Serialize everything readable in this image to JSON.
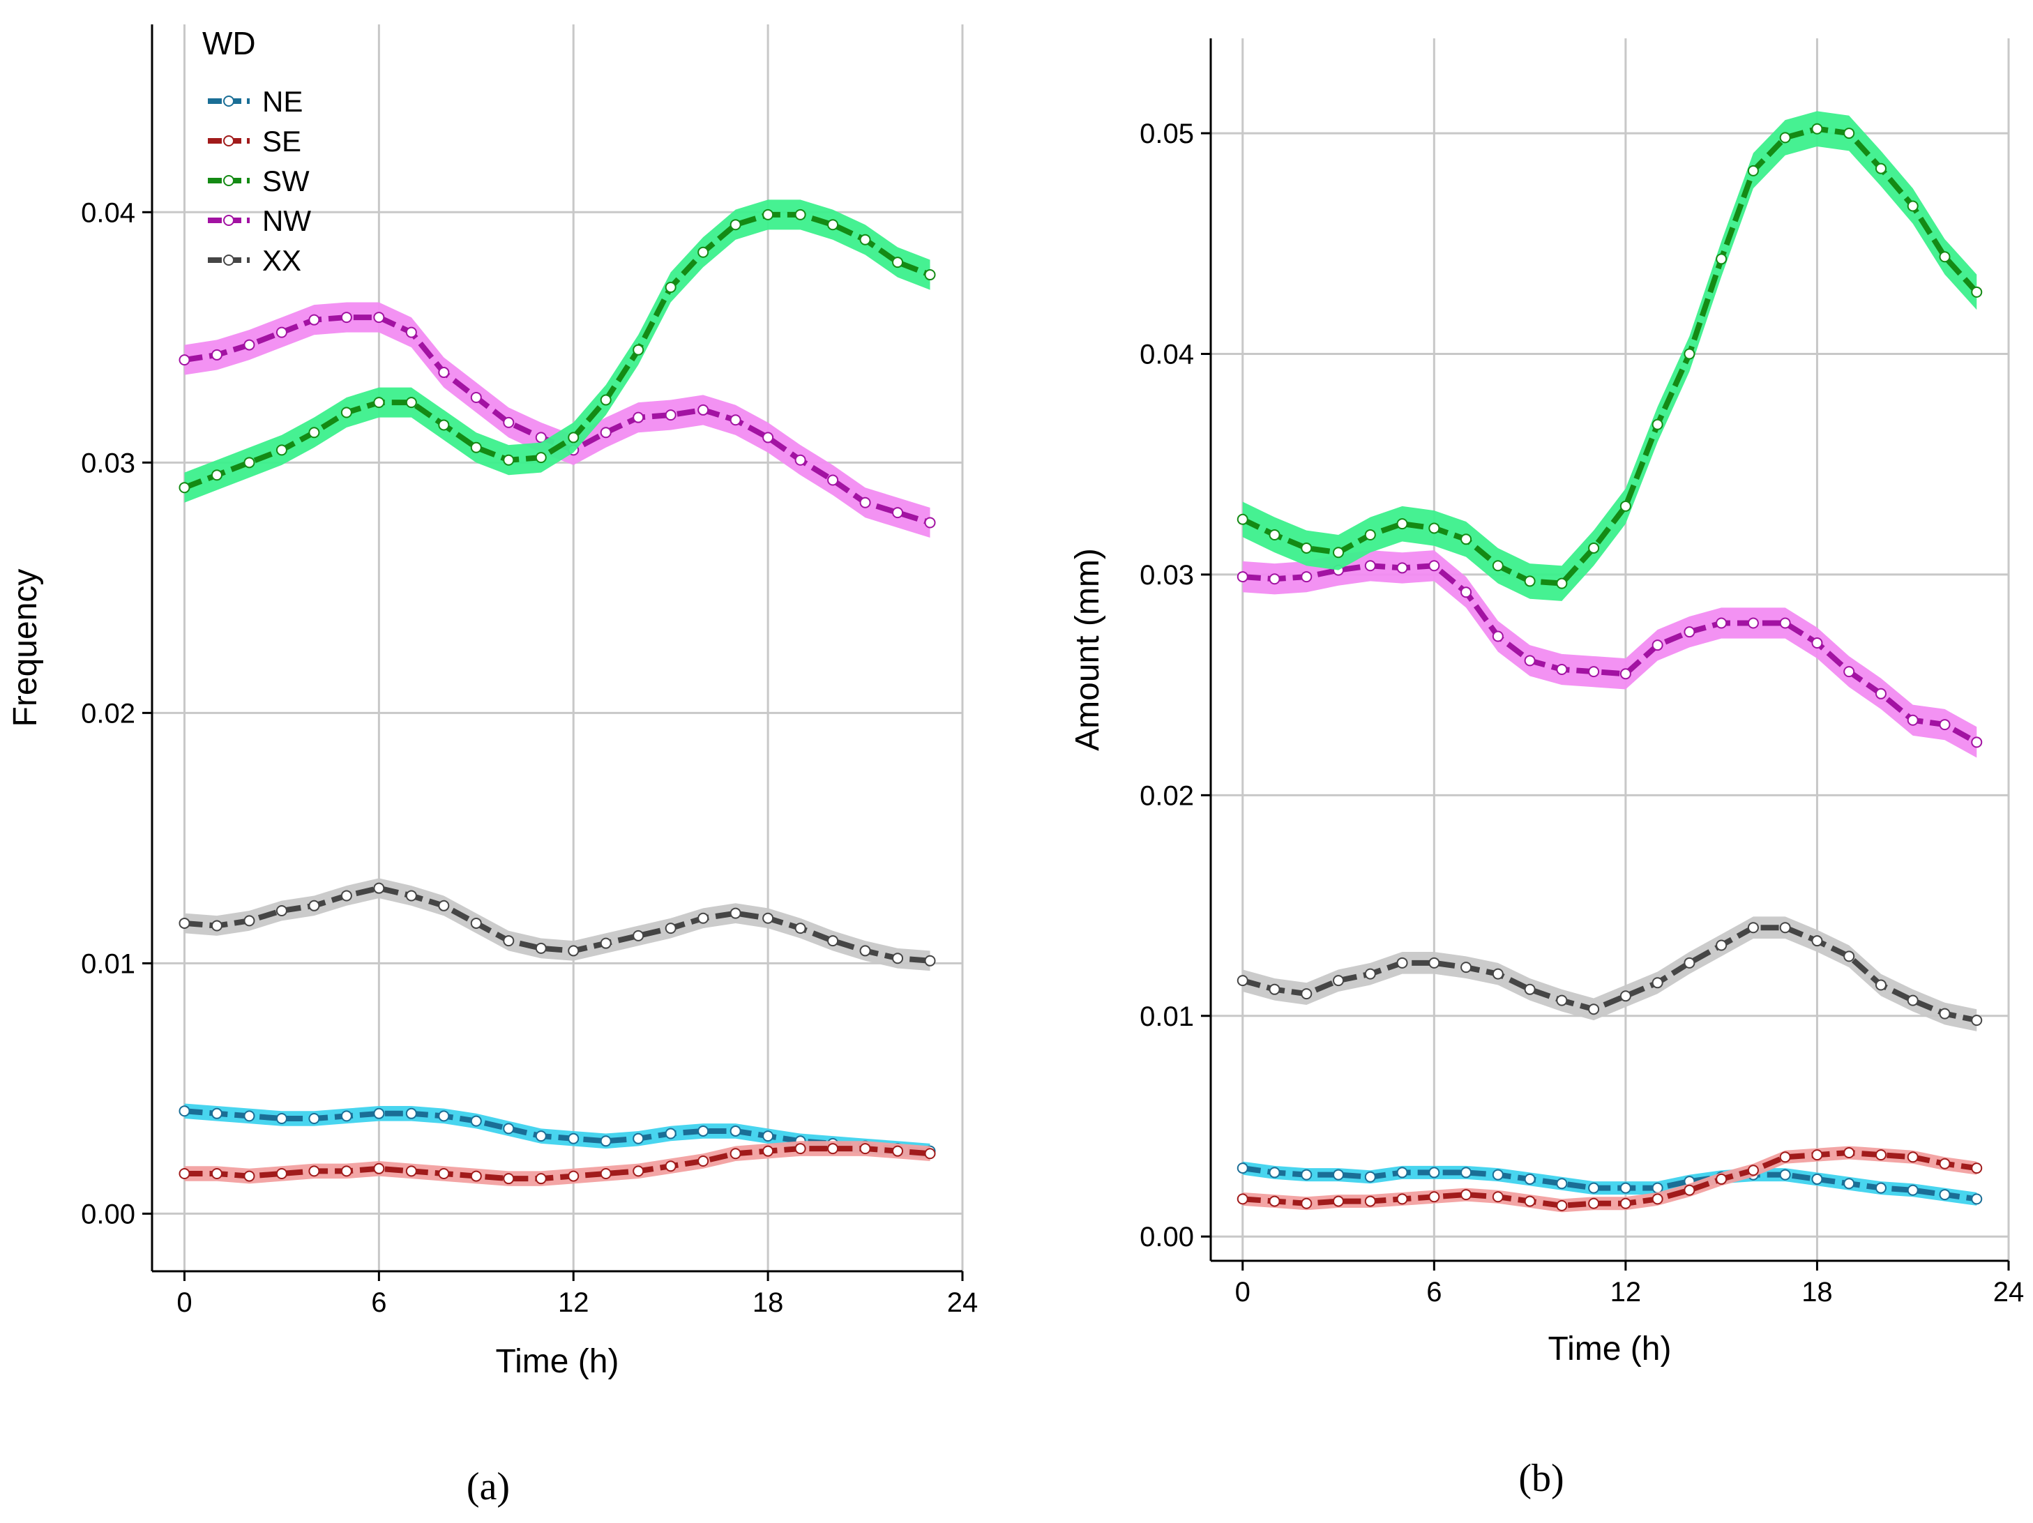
{
  "colors": {
    "NE": {
      "line": "#1a6e96",
      "band": "#3ed3ee"
    },
    "SE": {
      "line": "#a11b1b",
      "band": "#f2a0a0"
    },
    "SW": {
      "line": "#148a14",
      "band": "#3cf08c"
    },
    "NW": {
      "line": "#a212a2",
      "band": "#f28cf2"
    },
    "XX": {
      "line": "#454545",
      "band": "#c8c8c8"
    },
    "grid": "#c8c8c8",
    "axis": "#000000"
  },
  "chart_data": [
    {
      "type": "line",
      "panel_label": "(a)",
      "xlabel": "Time (h)",
      "ylabel": "Frequency",
      "xlim": [
        -1,
        24
      ],
      "ylim": [
        -0.0023,
        0.0475
      ],
      "xticks": [
        0,
        6,
        12,
        18,
        24
      ],
      "xtick_labels": [
        "0",
        "6",
        "12",
        "18",
        "24"
      ],
      "yticks": [
        0.0,
        0.01,
        0.02,
        0.03,
        0.04
      ],
      "ytick_labels": [
        "0.00",
        "0.01",
        "0.02",
        "0.03",
        "0.04"
      ],
      "grid": true,
      "legend": {
        "title": "WD",
        "position": "top-left"
      },
      "x": [
        0,
        1,
        2,
        3,
        4,
        5,
        6,
        7,
        8,
        9,
        10,
        11,
        12,
        13,
        14,
        15,
        16,
        17,
        18,
        19,
        20,
        21,
        22,
        23
      ],
      "series": [
        {
          "name": "NE",
          "values": [
            0.0041,
            0.004,
            0.0039,
            0.0038,
            0.0038,
            0.0039,
            0.004,
            0.004,
            0.0039,
            0.0037,
            0.0034,
            0.0031,
            0.003,
            0.0029,
            0.003,
            0.0032,
            0.0033,
            0.0033,
            0.0031,
            0.0029,
            0.0028,
            0.0027,
            0.0026,
            0.0025
          ]
        },
        {
          "name": "SE",
          "values": [
            0.0016,
            0.0016,
            0.0015,
            0.0016,
            0.0017,
            0.0017,
            0.0018,
            0.0017,
            0.0016,
            0.0015,
            0.0014,
            0.0014,
            0.0015,
            0.0016,
            0.0017,
            0.0019,
            0.0021,
            0.0024,
            0.0025,
            0.0026,
            0.0026,
            0.0026,
            0.0025,
            0.0024
          ]
        },
        {
          "name": "SW",
          "values": [
            0.029,
            0.0295,
            0.03,
            0.0305,
            0.0312,
            0.032,
            0.0324,
            0.0324,
            0.0315,
            0.0306,
            0.0301,
            0.0302,
            0.031,
            0.0325,
            0.0345,
            0.037,
            0.0384,
            0.0395,
            0.0399,
            0.0399,
            0.0395,
            0.0389,
            0.038,
            0.0375
          ]
        },
        {
          "name": "NW",
          "values": [
            0.0341,
            0.0343,
            0.0347,
            0.0352,
            0.0357,
            0.0358,
            0.0358,
            0.0352,
            0.0336,
            0.0326,
            0.0316,
            0.031,
            0.0305,
            0.0312,
            0.0318,
            0.0319,
            0.0321,
            0.0317,
            0.031,
            0.0301,
            0.0293,
            0.0284,
            0.028,
            0.0276
          ]
        },
        {
          "name": "XX",
          "values": [
            0.0116,
            0.0115,
            0.0117,
            0.0121,
            0.0123,
            0.0127,
            0.013,
            0.0127,
            0.0123,
            0.0116,
            0.0109,
            0.0106,
            0.0105,
            0.0108,
            0.0111,
            0.0114,
            0.0118,
            0.012,
            0.0118,
            0.0114,
            0.0109,
            0.0105,
            0.0102,
            0.0101
          ]
        }
      ],
      "band_halfwidth": {
        "NE": 0.0003,
        "SE": 0.0003,
        "SW": 0.0006,
        "NW": 0.0006,
        "XX": 0.0004
      }
    },
    {
      "type": "line",
      "panel_label": "(b)",
      "xlabel": "Time (h)",
      "ylabel": "Amount (mm)",
      "xlim": [
        -1,
        24
      ],
      "ylim": [
        -0.0011,
        0.0543
      ],
      "xticks": [
        0,
        6,
        12,
        18,
        24
      ],
      "xtick_labels": [
        "0",
        "6",
        "12",
        "18",
        "24"
      ],
      "yticks": [
        0.0,
        0.01,
        0.02,
        0.03,
        0.04,
        0.05
      ],
      "ytick_labels": [
        "0.00",
        "0.01",
        "0.02",
        "0.03",
        "0.04",
        "0.05"
      ],
      "grid": true,
      "x": [
        0,
        1,
        2,
        3,
        4,
        5,
        6,
        7,
        8,
        9,
        10,
        11,
        12,
        13,
        14,
        15,
        16,
        17,
        18,
        19,
        20,
        21,
        22,
        23
      ],
      "series": [
        {
          "name": "NE",
          "values": [
            0.0031,
            0.0029,
            0.0028,
            0.0028,
            0.0027,
            0.0029,
            0.0029,
            0.0029,
            0.0028,
            0.0026,
            0.0024,
            0.0022,
            0.0022,
            0.0022,
            0.0025,
            0.0027,
            0.0028,
            0.0028,
            0.0026,
            0.0024,
            0.0022,
            0.0021,
            0.0019,
            0.0017
          ]
        },
        {
          "name": "SE",
          "values": [
            0.0017,
            0.0016,
            0.0015,
            0.0016,
            0.0016,
            0.0017,
            0.0018,
            0.0019,
            0.0018,
            0.0016,
            0.0014,
            0.0015,
            0.0015,
            0.0017,
            0.0021,
            0.0026,
            0.003,
            0.0036,
            0.0037,
            0.0038,
            0.0037,
            0.0036,
            0.0033,
            0.0031
          ]
        },
        {
          "name": "SW",
          "values": [
            0.0325,
            0.0318,
            0.0312,
            0.031,
            0.0318,
            0.0323,
            0.0321,
            0.0316,
            0.0304,
            0.0297,
            0.0296,
            0.0312,
            0.0331,
            0.0368,
            0.04,
            0.0443,
            0.0483,
            0.0498,
            0.0502,
            0.05,
            0.0484,
            0.0467,
            0.0444,
            0.0428
          ]
        },
        {
          "name": "NW",
          "values": [
            0.0299,
            0.0298,
            0.0299,
            0.0302,
            0.0304,
            0.0303,
            0.0304,
            0.0292,
            0.0272,
            0.0261,
            0.0257,
            0.0256,
            0.0255,
            0.0268,
            0.0274,
            0.0278,
            0.0278,
            0.0278,
            0.0269,
            0.0256,
            0.0246,
            0.0234,
            0.0232,
            0.0224
          ]
        },
        {
          "name": "XX",
          "values": [
            0.0116,
            0.0112,
            0.011,
            0.0116,
            0.0119,
            0.0124,
            0.0124,
            0.0122,
            0.0119,
            0.0112,
            0.0107,
            0.0103,
            0.0109,
            0.0115,
            0.0124,
            0.0132,
            0.014,
            0.014,
            0.0134,
            0.0127,
            0.0114,
            0.0107,
            0.0101,
            0.0098
          ]
        }
      ],
      "band_halfwidth": {
        "NE": 0.0003,
        "SE": 0.0003,
        "SW": 0.0008,
        "NW": 0.0007,
        "XX": 0.0005
      }
    }
  ]
}
